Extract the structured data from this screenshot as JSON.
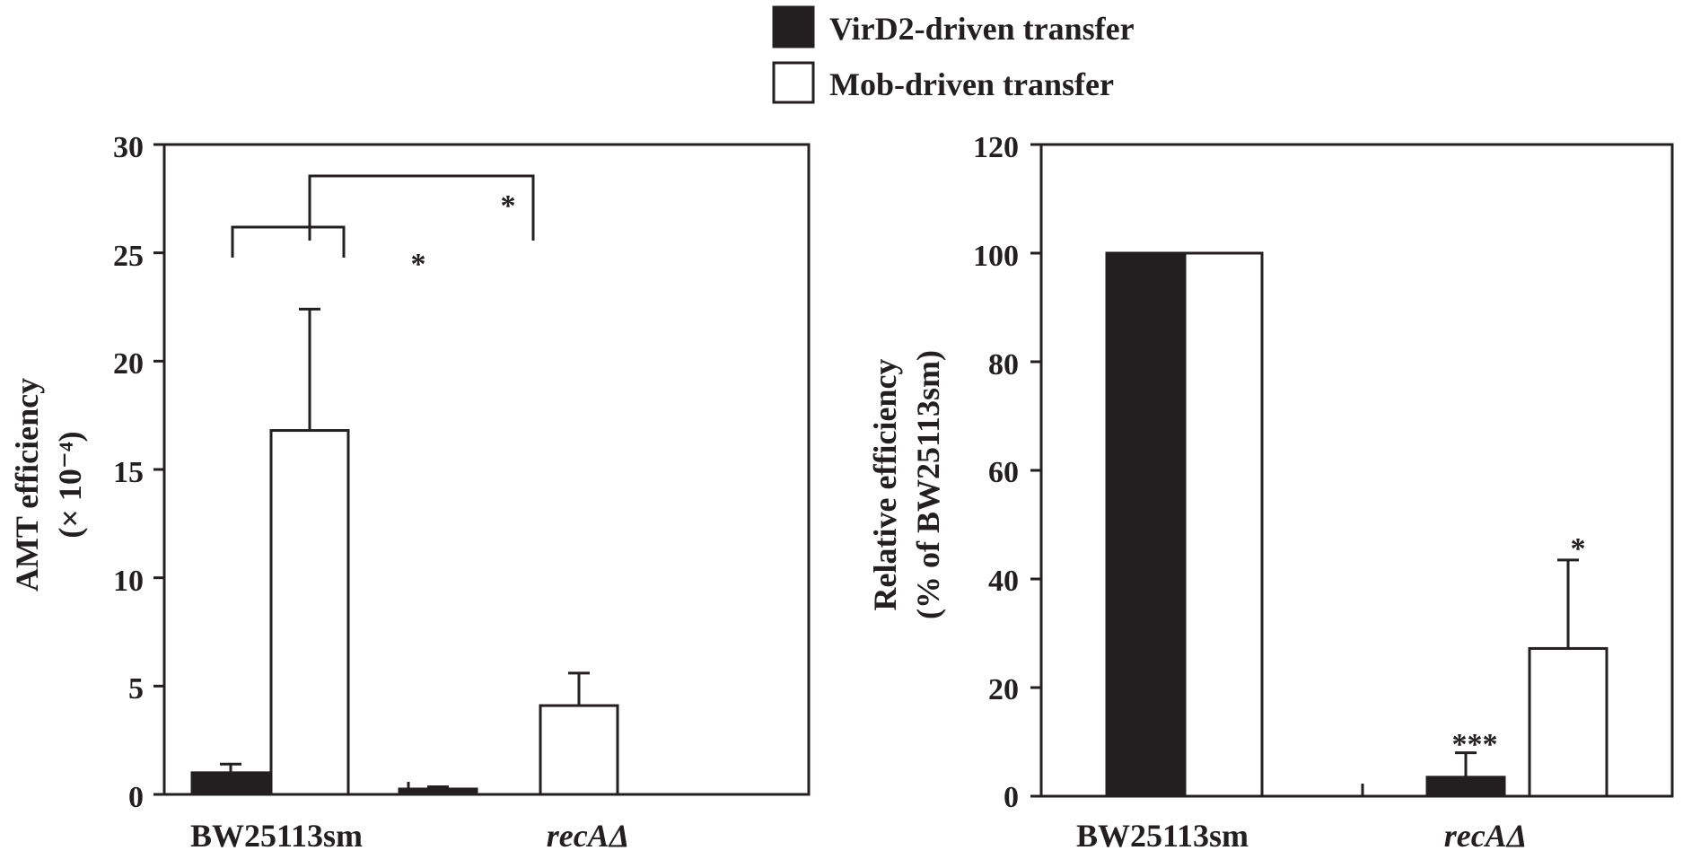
{
  "legend": [
    {
      "label": "VirD2-driven transfer",
      "color": "#231f20"
    },
    {
      "label": "Mob-driven transfer",
      "color": "#ffffff"
    }
  ],
  "chart_data": [
    {
      "type": "bar",
      "categories": [
        "BW25113sm",
        "recAΔ"
      ],
      "ylabel_line1": "AMT efficiency",
      "ylabel_line2": "(× 10⁻⁴)",
      "ylim": [
        0,
        30
      ],
      "yticks": [
        "0",
        "5",
        "10",
        "15",
        "20",
        "25",
        "30"
      ],
      "series": [
        {
          "name": "VirD2-driven transfer",
          "values": [
            1.0,
            0.25
          ],
          "errors": [
            0.4,
            0.1
          ]
        },
        {
          "name": "Mob-driven transfer",
          "values": [
            16.8,
            4.1
          ],
          "errors": [
            5.6,
            1.5
          ]
        }
      ],
      "significance_brackets": [
        {
          "label": "*",
          "from_series": 1,
          "from_category": 0,
          "to_series": 0,
          "to_category": 1
        },
        {
          "label": "*",
          "from_series": 1,
          "from_category": 0,
          "to_series": 1,
          "to_category": 1
        }
      ]
    },
    {
      "type": "bar",
      "categories": [
        "BW25113sm",
        "recAΔ"
      ],
      "ylabel_line1": "Relative efficiency",
      "ylabel_line2": "(% of BW25113sm)",
      "ylim": [
        0,
        120
      ],
      "yticks": [
        "0",
        "20",
        "40",
        "60",
        "80",
        "100",
        "120"
      ],
      "series": [
        {
          "name": "VirD2-driven transfer",
          "values": [
            100,
            3.5
          ],
          "errors": [
            0,
            4.5
          ]
        },
        {
          "name": "Mob-driven transfer",
          "values": [
            100,
            27.2
          ],
          "errors": [
            0,
            16.3
          ]
        }
      ],
      "significance_marks": [
        {
          "label": "***",
          "series": 0,
          "category": 1
        },
        {
          "label": "*",
          "series": 1,
          "category": 1
        }
      ]
    }
  ]
}
